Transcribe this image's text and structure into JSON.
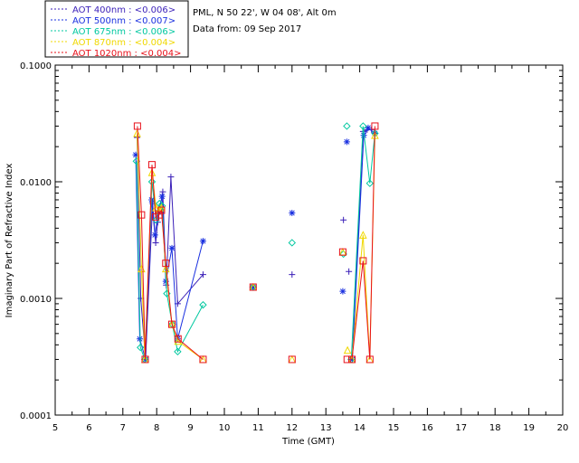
{
  "info": {
    "site": "PML, N 50 22', W 04 08', Alt 0m",
    "date": "Data from: 09 Sep 2017"
  },
  "chart_data": {
    "type": "scatter",
    "title": "",
    "xlabel": "Time (GMT)",
    "ylabel": "Imaginary Part of Refractive Index",
    "xlim": [
      5,
      20
    ],
    "ylim": [
      0.0001,
      0.1
    ],
    "yscale": "log",
    "x_ticks": [
      "5",
      "6",
      "7",
      "8",
      "9",
      "10",
      "11",
      "12",
      "13",
      "14",
      "15",
      "16",
      "17",
      "18",
      "19",
      "20"
    ],
    "y_ticks": [
      "0.0001",
      "0.0010",
      "0.0100",
      "0.1000"
    ],
    "legend_position": "top-left-outside",
    "series": [
      {
        "name": "AOT  400nm : <0.006>",
        "color": "#3a1fb8",
        "marker": "plus",
        "x": [
          7.42,
          7.53,
          7.67,
          7.88,
          7.97,
          8.03,
          8.18,
          8.28,
          8.42,
          8.62,
          9.37,
          10.85,
          12.0,
          13.52,
          13.68,
          13.78,
          14.1,
          14.22,
          14.35
        ],
        "y": [
          0.024,
          0.001,
          0.0003,
          0.0065,
          0.003,
          0.0045,
          0.0082,
          0.0013,
          0.011,
          0.0009,
          0.0016,
          0.00125,
          0.0016,
          0.0047,
          0.0017,
          0.0003,
          0.027,
          0.028,
          0.028
        ],
        "lines": [
          [
            0,
            11
          ],
          [
            15,
            19
          ]
        ]
      },
      {
        "name": "AOT  500nm : <0.007>",
        "color": "#1a30e0",
        "marker": "asterisk",
        "x": [
          7.38,
          7.5,
          7.67,
          7.85,
          7.95,
          8.05,
          8.16,
          8.27,
          8.45,
          8.62,
          9.37,
          10.85,
          12.0,
          13.5,
          13.62,
          13.78,
          14.12,
          14.25,
          14.45
        ],
        "y": [
          0.017,
          0.00045,
          0.0003,
          0.007,
          0.0035,
          0.0055,
          0.0075,
          0.0014,
          0.0027,
          0.00045,
          0.0031,
          0.00125,
          0.0054,
          0.00115,
          0.022,
          0.0003,
          0.025,
          0.029,
          0.026
        ],
        "lines": [
          [
            0,
            11
          ],
          [
            15,
            19
          ]
        ]
      },
      {
        "name": "AOT  675nm : <0.006>",
        "color": "#00c8a0",
        "marker": "diamond",
        "x": [
          7.4,
          7.52,
          7.65,
          7.86,
          7.98,
          8.08,
          8.16,
          8.3,
          8.46,
          8.62,
          9.37,
          10.85,
          12.0,
          13.52,
          13.62,
          13.75,
          14.1,
          14.3,
          14.45
        ],
        "y": [
          0.015,
          0.00038,
          0.0003,
          0.01,
          0.0047,
          0.0065,
          0.0062,
          0.0011,
          0.0006,
          0.00035,
          0.00088,
          0.00125,
          0.003,
          0.0024,
          0.03,
          0.0003,
          0.03,
          0.0097,
          0.026
        ],
        "lines": [
          [
            0,
            11
          ],
          [
            15,
            19
          ]
        ]
      },
      {
        "name": "AOT  870nm : <0.004>",
        "color": "#f0d800",
        "marker": "triangle",
        "x": [
          7.42,
          7.55,
          7.65,
          7.86,
          7.98,
          8.07,
          8.14,
          8.27,
          8.45,
          8.63,
          9.37,
          10.85,
          12.0,
          13.5,
          13.64,
          13.77,
          14.1,
          14.3,
          14.45
        ],
        "y": [
          0.026,
          0.0018,
          0.0003,
          0.012,
          0.006,
          0.0057,
          0.006,
          0.0018,
          0.0006,
          0.00043,
          0.0003,
          0.00125,
          0.0003,
          0.0025,
          0.00036,
          0.0003,
          0.0035,
          0.0003,
          0.025
        ],
        "lines": [
          [
            0,
            11
          ],
          [
            15,
            19
          ]
        ]
      },
      {
        "name": "AOT 1020nm : <0.004>",
        "color": "#e8101a",
        "marker": "square",
        "x": [
          7.43,
          7.55,
          7.66,
          7.86,
          7.97,
          8.07,
          8.14,
          8.27,
          8.45,
          8.63,
          9.37,
          10.85,
          12.0,
          13.5,
          13.63,
          13.77,
          14.1,
          14.3,
          14.45
        ],
        "y": [
          0.03,
          0.0052,
          0.0003,
          0.014,
          0.005,
          0.0052,
          0.0057,
          0.002,
          0.0006,
          0.00045,
          0.0003,
          0.00125,
          0.0003,
          0.0025,
          0.0003,
          0.0003,
          0.0021,
          0.0003,
          0.03
        ],
        "lines": [
          [
            0,
            11
          ],
          [
            15,
            19
          ]
        ]
      }
    ]
  }
}
